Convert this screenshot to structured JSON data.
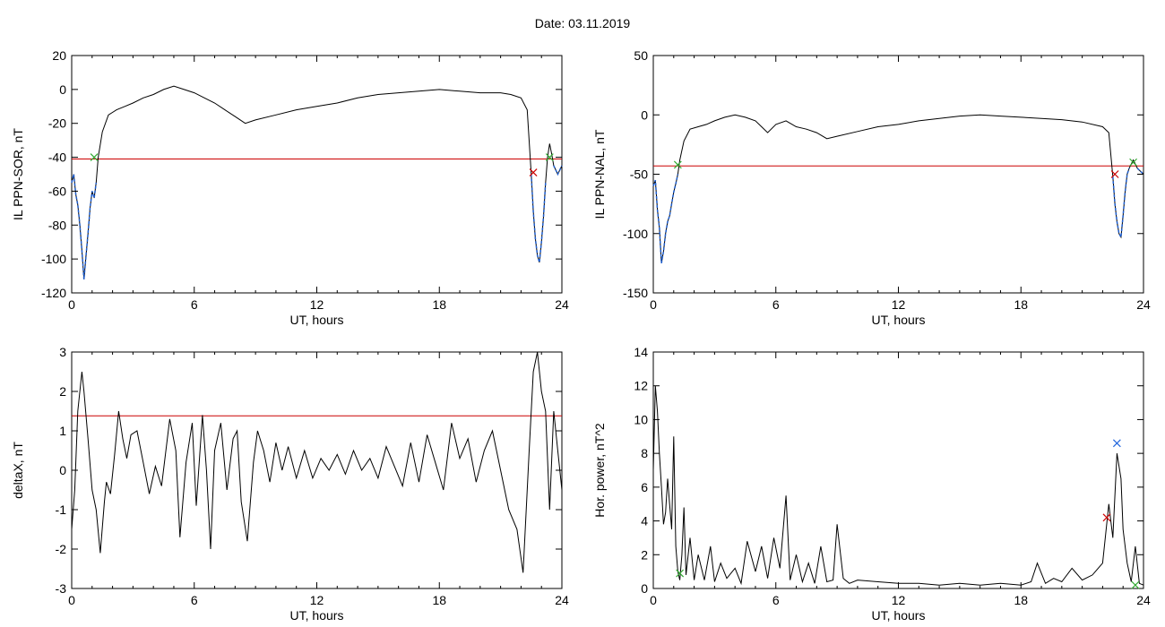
{
  "title": "Date:  03.11.2019",
  "colors": {
    "axis": "#000000",
    "line": "#000000",
    "threshold": "#cc0000",
    "highlight": "#1f5fd0",
    "green_marker": "#33aa33",
    "red_marker": "#cc0000",
    "blue_marker": "#2266dd"
  },
  "chart_data": [
    {
      "type": "line",
      "ylabel": "IL PPN-SOR, nT",
      "xlabel": "UT, hours",
      "xlim": [
        0,
        24
      ],
      "ylim": [
        -120,
        20
      ],
      "xticks": [
        0,
        6,
        12,
        18,
        24
      ],
      "yticks": [
        -120,
        -100,
        -80,
        -60,
        -40,
        -20,
        0,
        20
      ],
      "threshold": -41,
      "series": [
        {
          "values_x": [
            0,
            0.1,
            0.2,
            0.3,
            0.4,
            0.5,
            0.6,
            0.7,
            0.8,
            0.9,
            1.0,
            1.1,
            1.2,
            1.3,
            1.5,
            1.8,
            2.2,
            2.6,
            3.0,
            3.5,
            4.0,
            4.5,
            5.0,
            5.5,
            6.0,
            6.5,
            7.0,
            7.5,
            8.0,
            8.5,
            9.0,
            10,
            11,
            12,
            13,
            14,
            15,
            16,
            17,
            18,
            19,
            20,
            21,
            21.5,
            22.0,
            22.3,
            22.5,
            22.6,
            22.7,
            22.8,
            22.9,
            23.0,
            23.1,
            23.2,
            23.3,
            23.4,
            23.5,
            23.6,
            23.8,
            24.0
          ],
          "values_y": [
            -55,
            -50,
            -62,
            -68,
            -80,
            -95,
            -112,
            -98,
            -85,
            -70,
            -60,
            -64,
            -55,
            -40,
            -25,
            -15,
            -12,
            -10,
            -8,
            -5,
            -3,
            0,
            2,
            0,
            -2,
            -5,
            -8,
            -12,
            -16,
            -20,
            -18,
            -15,
            -12,
            -10,
            -8,
            -5,
            -3,
            -2,
            -1,
            0,
            -1,
            -2,
            -2,
            -3,
            -5,
            -12,
            -50,
            -72,
            -88,
            -98,
            -102,
            -90,
            -75,
            -55,
            -40,
            -32,
            -38,
            -45,
            -50,
            -45
          ]
        }
      ],
      "markers": [
        {
          "x": 1.1,
          "y": -40,
          "color": "green"
        },
        {
          "x": 22.6,
          "y": -49,
          "color": "red"
        },
        {
          "x": 23.4,
          "y": -40,
          "color": "green"
        }
      ]
    },
    {
      "type": "line",
      "ylabel": "IL PPN-NAL, nT",
      "xlabel": "UT, hours",
      "xlim": [
        0,
        24
      ],
      "ylim": [
        -150,
        50
      ],
      "xticks": [
        0,
        6,
        12,
        18,
        24
      ],
      "yticks": [
        -150,
        -100,
        -50,
        0,
        50
      ],
      "threshold": -43,
      "series": [
        {
          "values_x": [
            0,
            0.1,
            0.2,
            0.3,
            0.4,
            0.5,
            0.6,
            0.7,
            0.8,
            0.9,
            1.0,
            1.1,
            1.2,
            1.3,
            1.5,
            1.8,
            2.2,
            2.6,
            3.0,
            3.5,
            4.0,
            4.5,
            5.0,
            5.3,
            5.6,
            6.0,
            6.5,
            7.0,
            7.5,
            8.0,
            8.5,
            9.0,
            10,
            11,
            12,
            13,
            14,
            15,
            16,
            17,
            18,
            19,
            20,
            21,
            22.0,
            22.3,
            22.5,
            22.6,
            22.7,
            22.8,
            22.9,
            23.0,
            23.1,
            23.2,
            23.3,
            23.5,
            23.7,
            24.0
          ],
          "values_y": [
            -60,
            -55,
            -80,
            -95,
            -125,
            -115,
            -100,
            -90,
            -85,
            -75,
            -65,
            -58,
            -50,
            -38,
            -22,
            -12,
            -10,
            -8,
            -5,
            -2,
            0,
            -2,
            -5,
            -10,
            -15,
            -8,
            -5,
            -10,
            -12,
            -15,
            -20,
            -18,
            -14,
            -10,
            -8,
            -5,
            -3,
            -1,
            0,
            -1,
            -2,
            -3,
            -4,
            -6,
            -10,
            -15,
            -52,
            -75,
            -90,
            -100,
            -103,
            -85,
            -65,
            -50,
            -45,
            -38,
            -45,
            -50
          ]
        }
      ],
      "markers": [
        {
          "x": 1.2,
          "y": -42,
          "color": "green"
        },
        {
          "x": 22.6,
          "y": -50,
          "color": "red"
        },
        {
          "x": 23.5,
          "y": -40,
          "color": "green"
        }
      ]
    },
    {
      "type": "line",
      "ylabel": "deltaX, nT",
      "xlabel": "UT, hours",
      "xlim": [
        0,
        24
      ],
      "ylim": [
        -3,
        3
      ],
      "xticks": [
        0,
        6,
        12,
        18,
        24
      ],
      "yticks": [
        -3,
        -2,
        -1,
        0,
        1,
        2,
        3
      ],
      "threshold": 1.38,
      "series": [
        {
          "values_x": [
            0,
            0.15,
            0.3,
            0.5,
            0.6,
            0.8,
            1.0,
            1.2,
            1.4,
            1.6,
            1.7,
            1.9,
            2.1,
            2.3,
            2.5,
            2.7,
            2.9,
            3.2,
            3.5,
            3.8,
            4.1,
            4.4,
            4.8,
            5.1,
            5.3,
            5.6,
            5.9,
            6.1,
            6.4,
            6.6,
            6.8,
            7.0,
            7.3,
            7.6,
            7.9,
            8.1,
            8.3,
            8.6,
            8.9,
            9.1,
            9.4,
            9.7,
            10.0,
            10.3,
            10.6,
            11.0,
            11.4,
            11.8,
            12.2,
            12.6,
            13.0,
            13.4,
            13.8,
            14.2,
            14.6,
            15.0,
            15.4,
            15.8,
            16.2,
            16.6,
            17.0,
            17.4,
            17.8,
            18.2,
            18.6,
            19.0,
            19.4,
            19.8,
            20.2,
            20.6,
            21.0,
            21.4,
            21.8,
            22.1,
            22.4,
            22.6,
            22.8,
            23.0,
            23.2,
            23.4,
            23.6,
            23.8,
            24.0
          ],
          "values_y": [
            -1.5,
            -0.5,
            1.5,
            2.5,
            2.0,
            0.8,
            -0.5,
            -1.0,
            -2.1,
            -0.8,
            -0.3,
            -0.6,
            0.4,
            1.5,
            0.8,
            0.3,
            0.9,
            1.0,
            0.2,
            -0.6,
            0.1,
            -0.4,
            1.3,
            0.5,
            -1.7,
            0.2,
            1.2,
            -0.9,
            1.4,
            0.0,
            -2.0,
            0.5,
            1.2,
            -0.5,
            0.8,
            1.0,
            -0.8,
            -1.8,
            0.2,
            1.0,
            0.5,
            -0.3,
            0.7,
            0.0,
            0.6,
            -0.2,
            0.5,
            -0.2,
            0.3,
            0.0,
            0.4,
            -0.1,
            0.5,
            0.0,
            0.3,
            -0.2,
            0.6,
            0.1,
            -0.4,
            0.7,
            -0.3,
            0.9,
            0.2,
            -0.5,
            1.2,
            0.3,
            0.8,
            -0.3,
            0.5,
            1.0,
            0.0,
            -1.0,
            -1.5,
            -2.6,
            0.5,
            2.5,
            3.0,
            2.0,
            1.5,
            -1.0,
            1.5,
            0.5,
            -0.5
          ]
        }
      ],
      "markers": []
    },
    {
      "type": "line",
      "ylabel": "Hor. power, nT^2",
      "xlabel": "UT, hours",
      "xlim": [
        0,
        24
      ],
      "ylim": [
        0,
        14
      ],
      "xticks": [
        0,
        6,
        12,
        18,
        24
      ],
      "yticks": [
        0,
        2,
        4,
        6,
        8,
        10,
        12,
        14
      ],
      "threshold": null,
      "series": [
        {
          "values_x": [
            0,
            0.1,
            0.2,
            0.3,
            0.4,
            0.5,
            0.6,
            0.7,
            0.8,
            0.9,
            1.0,
            1.1,
            1.2,
            1.3,
            1.4,
            1.5,
            1.6,
            1.8,
            2.0,
            2.2,
            2.5,
            2.8,
            3.0,
            3.3,
            3.6,
            4.0,
            4.3,
            4.6,
            5.0,
            5.3,
            5.6,
            5.9,
            6.2,
            6.5,
            6.7,
            7.0,
            7.3,
            7.6,
            7.9,
            8.2,
            8.5,
            8.8,
            9.0,
            9.3,
            9.6,
            10,
            11,
            12,
            13,
            14,
            15,
            16,
            17,
            18,
            18.5,
            18.8,
            19.2,
            19.6,
            20,
            20.5,
            21,
            21.5,
            22.0,
            22.3,
            22.5,
            22.7,
            22.9,
            23.0,
            23.2,
            23.4,
            23.6,
            23.8,
            24.0
          ],
          "values_y": [
            7.0,
            12.0,
            10.5,
            8.0,
            6.0,
            3.8,
            4.5,
            6.5,
            5.0,
            3.5,
            9.0,
            2.5,
            1.0,
            0.5,
            2.0,
            4.8,
            0.8,
            3.0,
            0.5,
            2.0,
            0.5,
            2.5,
            0.4,
            1.5,
            0.6,
            1.2,
            0.3,
            2.8,
            1.0,
            2.5,
            0.6,
            3.0,
            1.2,
            5.5,
            0.5,
            2.0,
            0.4,
            1.5,
            0.3,
            2.5,
            0.4,
            0.5,
            3.8,
            0.6,
            0.3,
            0.5,
            0.4,
            0.3,
            0.3,
            0.2,
            0.3,
            0.2,
            0.3,
            0.2,
            0.4,
            1.5,
            0.3,
            0.6,
            0.4,
            1.2,
            0.5,
            0.8,
            1.5,
            5.0,
            3.0,
            8.0,
            6.5,
            3.5,
            1.5,
            0.4,
            2.5,
            0.3,
            0.2
          ]
        }
      ],
      "markers": [
        {
          "x": 1.3,
          "y": 0.9,
          "color": "green"
        },
        {
          "x": 22.2,
          "y": 4.2,
          "color": "red"
        },
        {
          "x": 22.7,
          "y": 8.6,
          "color": "blue"
        },
        {
          "x": 23.6,
          "y": 0.2,
          "color": "green"
        }
      ]
    }
  ]
}
